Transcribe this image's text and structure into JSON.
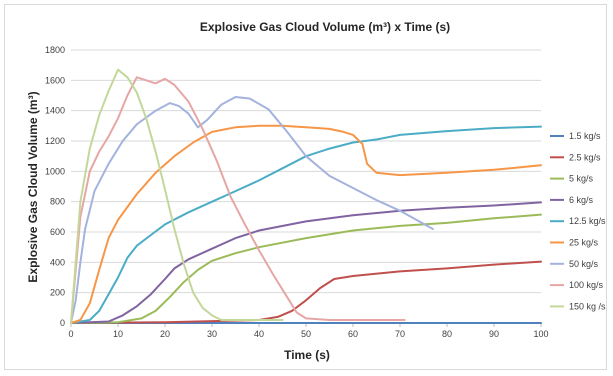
{
  "chart_data": {
    "type": "line",
    "title": "Explosive Gas Cloud Volume (m³) x Time (s)",
    "xlabel": "Time (s)",
    "ylabel": "Explosive Gas Cloud Volume (m³)",
    "xlim": [
      0,
      100
    ],
    "ylim": [
      0,
      1800
    ],
    "xticks": [
      0,
      10,
      20,
      30,
      40,
      50,
      60,
      70,
      80,
      90,
      100
    ],
    "yticks": [
      0,
      200,
      400,
      600,
      800,
      1000,
      1200,
      1400,
      1600,
      1800
    ],
    "grid": "horizontal",
    "legend_position": "right",
    "series": [
      {
        "name": "1.5 kg/s",
        "color": "#4f81bd",
        "points": [
          [
            0,
            0
          ],
          [
            100,
            0
          ]
        ]
      },
      {
        "name": "2.5 kg/s",
        "color": "#c0504d",
        "points": [
          [
            0,
            0
          ],
          [
            20,
            5
          ],
          [
            40,
            20
          ],
          [
            44,
            40
          ],
          [
            47,
            80
          ],
          [
            50,
            150
          ],
          [
            53,
            230
          ],
          [
            56,
            290
          ],
          [
            60,
            310
          ],
          [
            70,
            340
          ],
          [
            80,
            360
          ],
          [
            90,
            385
          ],
          [
            100,
            405
          ]
        ]
      },
      {
        "name": "5 kg/s",
        "color": "#9bbb59",
        "points": [
          [
            0,
            0
          ],
          [
            10,
            5
          ],
          [
            15,
            30
          ],
          [
            18,
            80
          ],
          [
            21,
            170
          ],
          [
            24,
            270
          ],
          [
            27,
            350
          ],
          [
            30,
            410
          ],
          [
            35,
            460
          ],
          [
            40,
            500
          ],
          [
            50,
            560
          ],
          [
            60,
            610
          ],
          [
            70,
            640
          ],
          [
            80,
            660
          ],
          [
            90,
            690
          ],
          [
            100,
            715
          ]
        ]
      },
      {
        "name": "6 kg/s",
        "color": "#8064a2",
        "points": [
          [
            0,
            0
          ],
          [
            8,
            10
          ],
          [
            11,
            50
          ],
          [
            14,
            110
          ],
          [
            17,
            190
          ],
          [
            20,
            290
          ],
          [
            22,
            360
          ],
          [
            25,
            420
          ],
          [
            30,
            490
          ],
          [
            35,
            560
          ],
          [
            40,
            610
          ],
          [
            50,
            670
          ],
          [
            60,
            710
          ],
          [
            70,
            740
          ],
          [
            80,
            760
          ],
          [
            90,
            775
          ],
          [
            100,
            795
          ]
        ]
      },
      {
        "name": "12.5 kg/s",
        "color": "#4bacc6",
        "points": [
          [
            0,
            0
          ],
          [
            4,
            20
          ],
          [
            6,
            80
          ],
          [
            8,
            190
          ],
          [
            10,
            300
          ],
          [
            12,
            430
          ],
          [
            14,
            510
          ],
          [
            17,
            580
          ],
          [
            20,
            650
          ],
          [
            25,
            730
          ],
          [
            30,
            800
          ],
          [
            35,
            870
          ],
          [
            40,
            940
          ],
          [
            45,
            1020
          ],
          [
            50,
            1100
          ],
          [
            55,
            1150
          ],
          [
            60,
            1190
          ],
          [
            65,
            1210
          ],
          [
            70,
            1240
          ],
          [
            80,
            1265
          ],
          [
            90,
            1285
          ],
          [
            100,
            1295
          ]
        ]
      },
      {
        "name": "25 kg/s",
        "color": "#f79646",
        "points": [
          [
            0,
            0
          ],
          [
            2,
            20
          ],
          [
            4,
            130
          ],
          [
            6,
            350
          ],
          [
            8,
            560
          ],
          [
            10,
            680
          ],
          [
            14,
            850
          ],
          [
            18,
            990
          ],
          [
            22,
            1100
          ],
          [
            26,
            1190
          ],
          [
            30,
            1260
          ],
          [
            35,
            1290
          ],
          [
            40,
            1300
          ],
          [
            45,
            1300
          ],
          [
            50,
            1290
          ],
          [
            55,
            1280
          ],
          [
            58,
            1260
          ],
          [
            60,
            1240
          ],
          [
            62,
            1180
          ],
          [
            63,
            1050
          ],
          [
            65,
            990
          ],
          [
            70,
            975
          ],
          [
            80,
            990
          ],
          [
            90,
            1010
          ],
          [
            100,
            1040
          ]
        ]
      },
      {
        "name": "50 kg/s",
        "color": "#a3b3de",
        "points": [
          [
            0,
            0
          ],
          [
            1,
            150
          ],
          [
            2,
            400
          ],
          [
            3,
            620
          ],
          [
            5,
            870
          ],
          [
            8,
            1050
          ],
          [
            11,
            1200
          ],
          [
            14,
            1310
          ],
          [
            18,
            1400
          ],
          [
            21,
            1450
          ],
          [
            23,
            1430
          ],
          [
            25,
            1380
          ],
          [
            27,
            1290
          ],
          [
            29,
            1340
          ],
          [
            32,
            1440
          ],
          [
            35,
            1490
          ],
          [
            38,
            1480
          ],
          [
            42,
            1410
          ],
          [
            46,
            1260
          ],
          [
            50,
            1100
          ],
          [
            55,
            970
          ],
          [
            60,
            890
          ],
          [
            65,
            810
          ],
          [
            70,
            740
          ],
          [
            77,
            620
          ]
        ]
      },
      {
        "name": "100 kg/s",
        "color": "#e6a6a5",
        "points": [
          [
            0,
            0
          ],
          [
            1,
            350
          ],
          [
            2,
            700
          ],
          [
            4,
            1000
          ],
          [
            6,
            1130
          ],
          [
            8,
            1230
          ],
          [
            10,
            1350
          ],
          [
            12,
            1500
          ],
          [
            14,
            1620
          ],
          [
            16,
            1600
          ],
          [
            18,
            1580
          ],
          [
            20,
            1610
          ],
          [
            22,
            1570
          ],
          [
            25,
            1460
          ],
          [
            28,
            1280
          ],
          [
            31,
            1070
          ],
          [
            34,
            830
          ],
          [
            37,
            650
          ],
          [
            40,
            480
          ],
          [
            43,
            320
          ],
          [
            46,
            170
          ],
          [
            48,
            70
          ],
          [
            50,
            30
          ],
          [
            55,
            20
          ],
          [
            71,
            20
          ]
        ]
      },
      {
        "name": "150 kg /s",
        "color": "#c4d79b",
        "points": [
          [
            0,
            0
          ],
          [
            1,
            400
          ],
          [
            2,
            800
          ],
          [
            4,
            1150
          ],
          [
            6,
            1370
          ],
          [
            8,
            1530
          ],
          [
            10,
            1670
          ],
          [
            12,
            1620
          ],
          [
            14,
            1520
          ],
          [
            16,
            1350
          ],
          [
            18,
            1130
          ],
          [
            20,
            880
          ],
          [
            22,
            620
          ],
          [
            24,
            390
          ],
          [
            26,
            200
          ],
          [
            28,
            100
          ],
          [
            30,
            50
          ],
          [
            32,
            20
          ],
          [
            45,
            20
          ]
        ]
      }
    ]
  }
}
